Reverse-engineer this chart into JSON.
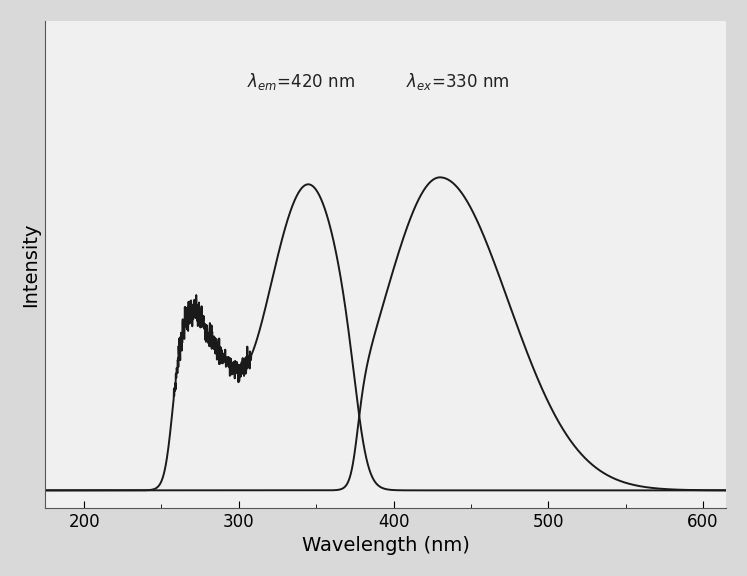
{
  "title": "",
  "xlabel": "Wavelength (nm)",
  "ylabel": "Intensity",
  "xlim": [
    175,
    615
  ],
  "ylim": [
    -0.05,
    1.35
  ],
  "xticks": [
    200,
    300,
    400,
    500,
    600
  ],
  "background_color": "#d9d9d9",
  "plot_bg_color": "#f0f0f0",
  "line_color": "#1a1a1a",
  "line_width": 1.4
}
